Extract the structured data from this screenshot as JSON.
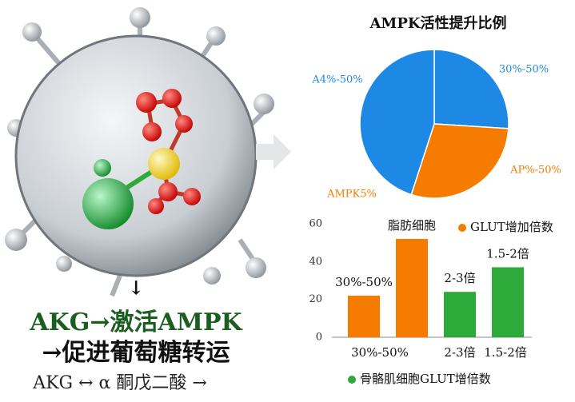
{
  "chart_data": [
    {
      "type": "pie",
      "title": "AMPK活性提升比例",
      "categories": [
        "30%-50%",
        "AP%-50%",
        "A4%-50%"
      ],
      "values": [
        26,
        29,
        45
      ],
      "colors": [
        "#1e88e5",
        "#f57c00",
        "#1e88e5"
      ],
      "annotation": "AMPK5%"
    },
    {
      "type": "bar",
      "categories": [
        "30%-50%",
        null,
        "2-3倍",
        "1.5-2倍"
      ],
      "series": [
        {
          "name": "GLUT增加倍数",
          "color": "#f57c00",
          "values": [
            22,
            52,
            null,
            null
          ]
        },
        {
          "name": "骨骼肌细胞GLUT增倍数",
          "color": "#2eaa3a",
          "values": [
            null,
            null,
            24,
            37
          ]
        }
      ],
      "bar_labels": [
        "30%-50%",
        "脂肪细胞",
        "2-3倍",
        "1.5-2倍"
      ],
      "ylim": [
        0,
        60
      ],
      "yticks": [
        0,
        20,
        40,
        60
      ],
      "grid": false
    }
  ],
  "headline": [
    "AKG→激活AMPK",
    "→促进葡萄糖转运"
  ],
  "arrow": "↓",
  "footnote": "AKG ↔ α 酮戊二酸 →"
}
